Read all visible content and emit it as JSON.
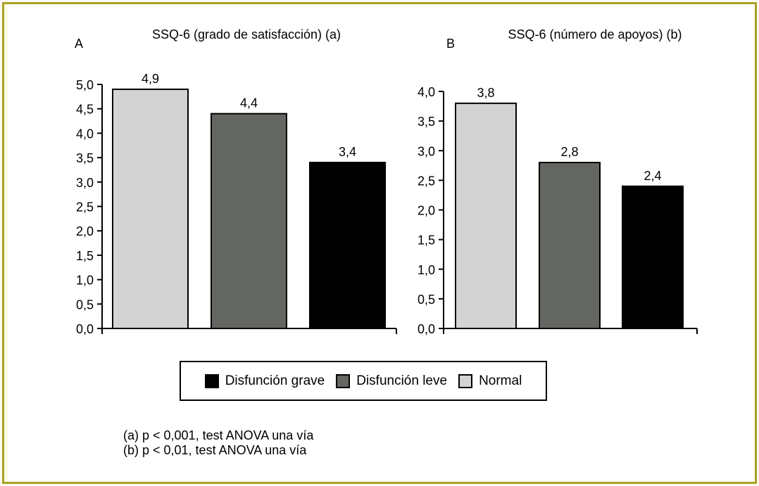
{
  "chart_data": [
    {
      "type": "bar",
      "panel_label": "A",
      "title": "SSQ-6 (grado de satisfacción) (a)",
      "categories": [
        "Normal",
        "Disfunción leve",
        "Disfunción grave"
      ],
      "values": [
        4.9,
        4.4,
        3.4
      ],
      "value_labels": [
        "4,9",
        "4,4",
        "3,4"
      ],
      "ylim": [
        0,
        5.0
      ],
      "yticks": [
        0,
        0.5,
        1.0,
        1.5,
        2.0,
        2.5,
        3.0,
        3.5,
        4.0,
        4.5,
        5.0
      ],
      "ytick_labels": [
        "0,0",
        "0,5",
        "1,0",
        "1,5",
        "2,0",
        "2,5",
        "3,0",
        "3,5",
        "4,0",
        "4,5",
        "5,0"
      ],
      "colors": [
        "#d3d3d3",
        "#646662",
        "#000000"
      ],
      "grid": false
    },
    {
      "type": "bar",
      "panel_label": "B",
      "title": "SSQ-6 (número de apoyos) (b)",
      "categories": [
        "Normal",
        "Disfunción leve",
        "Disfunción grave"
      ],
      "values": [
        3.8,
        2.8,
        2.4
      ],
      "value_labels": [
        "3,8",
        "2,8",
        "2,4"
      ],
      "ylim": [
        0,
        4.0
      ],
      "yticks": [
        0,
        0.5,
        1.0,
        1.5,
        2.0,
        2.5,
        3.0,
        3.5,
        4.0
      ],
      "ytick_labels": [
        "0,0",
        "0,5",
        "1,0",
        "1,5",
        "2,0",
        "2,5",
        "3,0",
        "3,5",
        "4,0"
      ],
      "colors": [
        "#d3d3d3",
        "#646662",
        "#000000"
      ],
      "grid": false
    }
  ],
  "legend": {
    "placement": "bottom-center",
    "items": [
      {
        "label": "Disfunción grave",
        "color": "#000000"
      },
      {
        "label": "Disfunción leve",
        "color": "#646662"
      },
      {
        "label": "Normal",
        "color": "#d3d3d3"
      }
    ]
  },
  "notes": [
    "(a) p < 0,001, test ANOVA una vía",
    "(b) p < 0,01, test ANOVA una vía"
  ],
  "frame_color": "#a8a224"
}
